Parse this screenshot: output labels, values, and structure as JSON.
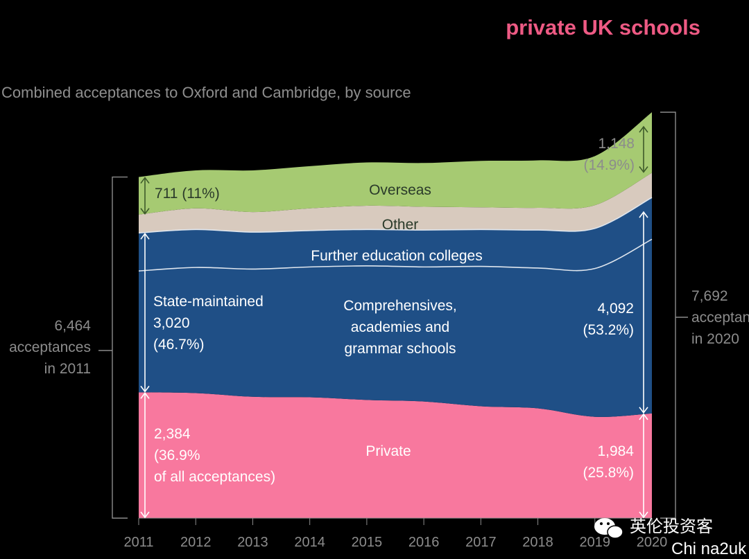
{
  "header": {
    "title": "private UK schools",
    "subtitle": "Combined acceptances to Oxford and Cambridge, by source"
  },
  "colors": {
    "overseas": "#a6ca72",
    "other": "#d8cabe",
    "state": "#1f4f86",
    "private": "#f8789e",
    "title": "#ee5a84"
  },
  "annotations": {
    "total_2011": [
      "6,464",
      "acceptances",
      "in 2011"
    ],
    "total_2020": [
      "7,692",
      "acceptances",
      "in 2020"
    ],
    "overseas_2011": "711 (11%)",
    "overseas_2020": [
      "1,148",
      "(14.9%)"
    ],
    "state_2011": [
      "State-maintained",
      "3,020",
      "(46.7%)"
    ],
    "state_2020": [
      "4,092",
      "(53.2%)"
    ],
    "private_2011": [
      "2,384",
      "(36.9%",
      "of all acceptances)"
    ],
    "private_2020": [
      "1,984",
      "(25.8%)"
    ],
    "band_overseas": "Overseas",
    "band_other": "Other",
    "band_fe": "Further education colleges",
    "band_comp": [
      "Comprehensives,",
      "academies and",
      "grammar schools"
    ],
    "band_private": "Private"
  },
  "watermark": {
    "line1": "英伦投资客",
    "line2": "Chi na2uk"
  },
  "chart_data": {
    "type": "area",
    "stacked": true,
    "title": "private UK schools",
    "subtitle": "Combined acceptances to Oxford and Cambridge, by source",
    "x": [
      2011,
      2012,
      2013,
      2014,
      2015,
      2016,
      2017,
      2018,
      2019,
      2020
    ],
    "series": [
      {
        "name": "Private",
        "values": [
          2384,
          2370,
          2300,
          2290,
          2240,
          2210,
          2120,
          2080,
          1920,
          1984
        ]
      },
      {
        "name": "Comprehensives, academies and grammar schools",
        "values": [
          2300,
          2380,
          2420,
          2470,
          2540,
          2550,
          2650,
          2660,
          2810,
          3300
        ]
      },
      {
        "name": "Further education colleges",
        "values": [
          720,
          720,
          700,
          690,
          690,
          700,
          700,
          720,
          760,
          792
        ]
      },
      {
        "name": "Other",
        "values": [
          349,
          400,
          380,
          420,
          450,
          440,
          420,
          420,
          440,
          468
        ]
      },
      {
        "name": "Overseas",
        "values": [
          711,
          720,
          790,
          800,
          820,
          830,
          880,
          900,
          930,
          1148
        ]
      }
    ],
    "totals": {
      "2011": 6464,
      "2020": 7692
    },
    "ylim": [
      0,
      7692
    ],
    "grid": false,
    "legend": "none"
  }
}
